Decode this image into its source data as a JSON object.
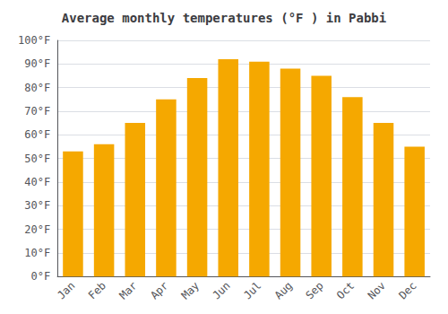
{
  "chart_data": {
    "type": "bar",
    "title": "Average monthly temperatures (°F ) in Pabbi",
    "categories": [
      "Jan",
      "Feb",
      "Mar",
      "Apr",
      "May",
      "Jun",
      "Jul",
      "Aug",
      "Sep",
      "Oct",
      "Nov",
      "Dec"
    ],
    "values": [
      53,
      56,
      65,
      75,
      84,
      92,
      91,
      88,
      85,
      76,
      65,
      55
    ],
    "color": "#F5A800",
    "ylim": [
      0,
      100
    ],
    "yticks": [
      {
        "value": 0,
        "label": "0°F"
      },
      {
        "value": 10,
        "label": "10°F"
      },
      {
        "value": 20,
        "label": "20°F"
      },
      {
        "value": 30,
        "label": "30°F"
      },
      {
        "value": 40,
        "label": "40°F"
      },
      {
        "value": 50,
        "label": "50°F"
      },
      {
        "value": 60,
        "label": "60°F"
      },
      {
        "value": 70,
        "label": "70°F"
      },
      {
        "value": 80,
        "label": "80°F"
      },
      {
        "value": 90,
        "label": "90°F"
      },
      {
        "value": 100,
        "label": "100°F"
      }
    ],
    "grid": true
  }
}
